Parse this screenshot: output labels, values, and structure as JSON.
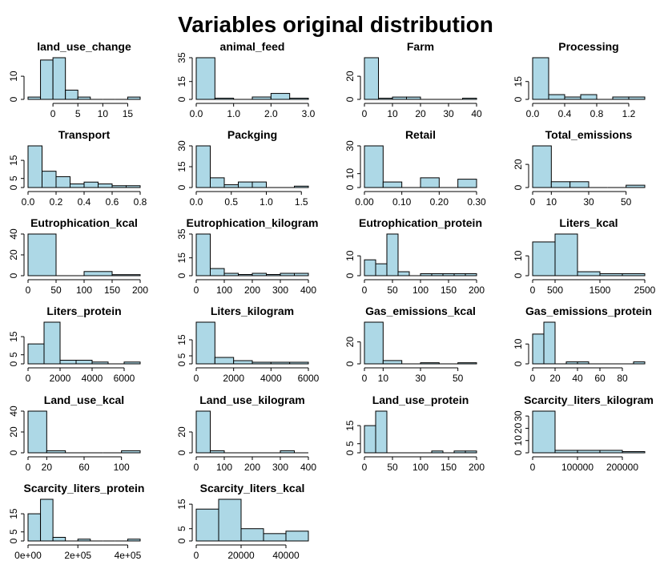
{
  "title": "Variables original distribution",
  "colors": {
    "bar_fill": "#add8e6",
    "bar_stroke": "#000000",
    "axis": "#000000"
  },
  "chart_data": [
    {
      "type": "bar",
      "title": "land_use_change",
      "bins": [
        -5,
        -2.5,
        0,
        2.5,
        5,
        7.5,
        10,
        12.5,
        15,
        17.5
      ],
      "counts": [
        1,
        17,
        18,
        4,
        1,
        0,
        0,
        0,
        1,
        1
      ],
      "xticks": [
        0,
        5,
        10,
        15
      ],
      "yticks": [
        0,
        10
      ],
      "ylim": [
        0,
        18
      ]
    },
    {
      "type": "bar",
      "title": "animal_feed",
      "bins": [
        0,
        0.5,
        1,
        1.5,
        2,
        2.5,
        3
      ],
      "counts": [
        35,
        1,
        0,
        2,
        5,
        1
      ],
      "xticks": [
        0,
        1,
        2,
        3
      ],
      "xtick_labels": [
        "0.0",
        "1.0",
        "2.0",
        "3.0"
      ],
      "yticks": [
        0,
        15,
        35
      ],
      "ylim": [
        0,
        35
      ]
    },
    {
      "type": "bar",
      "title": "Farm",
      "bins": [
        0,
        5,
        10,
        15,
        20,
        25,
        30,
        35,
        40
      ],
      "counts": [
        36,
        1,
        2,
        2,
        0,
        0,
        0,
        1
      ],
      "xticks": [
        0,
        10,
        20,
        30,
        40
      ],
      "yticks": [
        0,
        20
      ],
      "ylim": [
        0,
        36
      ]
    },
    {
      "type": "bar",
      "title": "Processing",
      "bins": [
        0,
        0.2,
        0.4,
        0.6,
        0.8,
        1,
        1.2,
        1.4
      ],
      "counts": [
        35,
        4,
        2,
        4,
        0,
        2,
        2
      ],
      "xticks": [
        0,
        0.4,
        0.8,
        1.2
      ],
      "xtick_labels": [
        "0.0",
        "0.4",
        "0.8",
        "1.2"
      ],
      "yticks": [
        0,
        15
      ],
      "ylim": [
        0,
        35
      ]
    },
    {
      "type": "bar",
      "title": "Transport",
      "bins": [
        0,
        0.1,
        0.2,
        0.3,
        0.4,
        0.5,
        0.6,
        0.7,
        0.8
      ],
      "counts": [
        23,
        9,
        6,
        2,
        3,
        2,
        1,
        1
      ],
      "xticks": [
        0,
        0.2,
        0.4,
        0.6,
        0.8
      ],
      "xtick_labels": [
        "0.0",
        "0.2",
        "0.4",
        "0.6",
        "0.8"
      ],
      "yticks": [
        0,
        5,
        15
      ],
      "ylim": [
        0,
        23
      ]
    },
    {
      "type": "bar",
      "title": "Packging",
      "bins": [
        0,
        0.2,
        0.4,
        0.6,
        0.8,
        1,
        1.2,
        1.4,
        1.6
      ],
      "counts": [
        30,
        7,
        2,
        4,
        4,
        0,
        0,
        1
      ],
      "xticks": [
        0,
        0.5,
        1,
        1.5
      ],
      "xtick_labels": [
        "0.0",
        "0.5",
        "1.0",
        "1.5"
      ],
      "yticks": [
        0,
        15,
        30
      ],
      "ylim": [
        0,
        30
      ]
    },
    {
      "type": "bar",
      "title": "Retail",
      "bins": [
        0,
        0.05,
        0.1,
        0.15,
        0.2,
        0.25,
        0.3
      ],
      "counts": [
        30,
        4,
        0,
        7,
        0,
        6
      ],
      "xticks": [
        0,
        0.1,
        0.2,
        0.3
      ],
      "xtick_labels": [
        "0.00",
        "0.10",
        "0.20",
        "0.30"
      ],
      "yticks": [
        0,
        10,
        30
      ],
      "ylim": [
        0,
        30
      ]
    },
    {
      "type": "bar",
      "title": "Total_emissions",
      "bins": [
        0,
        10,
        20,
        30,
        40,
        50,
        60
      ],
      "counts": [
        36,
        5,
        5,
        0,
        0,
        2
      ],
      "xticks": [
        0,
        10,
        30,
        50
      ],
      "yticks": [
        0,
        20
      ],
      "ylim": [
        0,
        36
      ]
    },
    {
      "type": "bar",
      "title": "Eutrophication_kcal",
      "bins": [
        0,
        50,
        100,
        150,
        200
      ],
      "counts": [
        40,
        0,
        4,
        1
      ],
      "xticks": [
        0,
        50,
        100,
        150,
        200
      ],
      "yticks": [
        0,
        20,
        40
      ],
      "ylim": [
        0,
        40
      ]
    },
    {
      "type": "bar",
      "title": "Eutrophication_kilogram",
      "bins": [
        0,
        50,
        100,
        150,
        200,
        250,
        300,
        350,
        400
      ],
      "counts": [
        35,
        6,
        2,
        1,
        2,
        1,
        2,
        2
      ],
      "xticks": [
        0,
        100,
        200,
        300,
        400
      ],
      "yticks": [
        0,
        15,
        35
      ],
      "ylim": [
        0,
        35
      ]
    },
    {
      "type": "bar",
      "title": "Eutrophication_protein",
      "bins": [
        0,
        20,
        40,
        60,
        80,
        100,
        120,
        140,
        160,
        180,
        200
      ],
      "counts": [
        8,
        6,
        21,
        2,
        0,
        1,
        1,
        1,
        1,
        1
      ],
      "xticks": [
        0,
        50,
        100,
        150,
        200
      ],
      "yticks": [
        0,
        10
      ],
      "ylim": [
        0,
        21
      ]
    },
    {
      "type": "bar",
      "title": "Liters_kcal",
      "bins": [
        0,
        500,
        1000,
        1500,
        2000,
        2500
      ],
      "counts": [
        17,
        21,
        2,
        1,
        1
      ],
      "xticks": [
        0,
        500,
        1500,
        2500
      ],
      "yticks": [
        0,
        10
      ],
      "ylim": [
        0,
        21
      ]
    },
    {
      "type": "bar",
      "title": "Liters_protein",
      "bins": [
        0,
        1000,
        2000,
        3000,
        4000,
        5000,
        6000,
        7000
      ],
      "counts": [
        11,
        23,
        2,
        2,
        1,
        0,
        1
      ],
      "xticks": [
        0,
        2000,
        4000,
        6000
      ],
      "yticks": [
        0,
        5,
        15
      ],
      "ylim": [
        0,
        23
      ]
    },
    {
      "type": "bar",
      "title": "Liters_kilogram",
      "bins": [
        0,
        1000,
        2000,
        3000,
        4000,
        5000,
        6000
      ],
      "counts": [
        26,
        4,
        2,
        1,
        1,
        1
      ],
      "xticks": [
        0,
        2000,
        4000,
        6000
      ],
      "yticks": [
        0,
        5,
        15
      ],
      "ylim": [
        0,
        26
      ]
    },
    {
      "type": "bar",
      "title": "Gas_emissions_kcal",
      "bins": [
        0,
        10,
        20,
        30,
        40,
        50,
        60
      ],
      "counts": [
        38,
        3,
        0,
        1,
        0,
        1
      ],
      "xticks": [
        0,
        10,
        30,
        50
      ],
      "yticks": [
        0,
        20
      ],
      "ylim": [
        0,
        38
      ]
    },
    {
      "type": "bar",
      "title": "Gas_emissions_protein",
      "bins": [
        0,
        10,
        20,
        30,
        40,
        50,
        60,
        70,
        80,
        90,
        100
      ],
      "counts": [
        15,
        21,
        0,
        1,
        1,
        0,
        0,
        0,
        0,
        1
      ],
      "xticks": [
        0,
        20,
        40,
        60,
        80
      ],
      "yticks": [
        0,
        10
      ],
      "ylim": [
        0,
        21
      ]
    },
    {
      "type": "bar",
      "title": "Land_use_kcal",
      "bins": [
        0,
        20,
        40,
        60,
        80,
        100,
        120
      ],
      "counts": [
        40,
        2,
        0,
        0,
        0,
        2
      ],
      "xticks": [
        0,
        20,
        60,
        100
      ],
      "yticks": [
        0,
        20,
        40
      ],
      "ylim": [
        0,
        40
      ]
    },
    {
      "type": "bar",
      "title": "Land_use_kilogram",
      "bins": [
        0,
        50,
        100,
        150,
        200,
        250,
        300,
        350,
        400
      ],
      "counts": [
        40,
        2,
        0,
        0,
        0,
        0,
        2,
        0
      ],
      "xticks": [
        0,
        100,
        200,
        300,
        400
      ],
      "yticks": [
        0,
        20
      ],
      "ylim": [
        0,
        40
      ]
    },
    {
      "type": "bar",
      "title": "Land_use_protein",
      "bins": [
        0,
        20,
        40,
        60,
        80,
        100,
        120,
        140,
        160,
        180,
        200
      ],
      "counts": [
        15,
        23,
        0,
        0,
        0,
        0,
        1,
        0,
        1,
        1
      ],
      "xticks": [
        0,
        50,
        100,
        150,
        200
      ],
      "yticks": [
        0,
        5,
        15
      ],
      "ylim": [
        0,
        23
      ]
    },
    {
      "type": "bar",
      "title": "Scarcity_liters_kilogram",
      "bins": [
        0,
        50000,
        100000,
        150000,
        200000,
        250000
      ],
      "counts": [
        34,
        2,
        2,
        2,
        1
      ],
      "xticks": [
        0,
        100000,
        200000
      ],
      "yticks": [
        0,
        10,
        20,
        30
      ],
      "ylim": [
        0,
        34
      ]
    },
    {
      "type": "bar",
      "title": "Scarcity_liters_protein",
      "bins": [
        0,
        50000,
        100000,
        150000,
        200000,
        250000,
        300000,
        350000,
        400000,
        450000
      ],
      "counts": [
        15,
        23,
        2,
        0,
        1,
        0,
        0,
        0,
        1
      ],
      "xticks": [
        0,
        200000,
        400000
      ],
      "xtick_labels": [
        "0e+00",
        "2e+05",
        "4e+05"
      ],
      "yticks": [
        0,
        5,
        15
      ],
      "ylim": [
        0,
        23
      ]
    },
    {
      "type": "bar",
      "title": "Scarcity_liters_kcal",
      "bins": [
        0,
        10000,
        20000,
        30000,
        40000,
        50000
      ],
      "counts": [
        13,
        17,
        5,
        3,
        4
      ],
      "xticks": [
        0,
        20000,
        40000
      ],
      "yticks": [
        0,
        5,
        15
      ],
      "ylim": [
        0,
        17
      ]
    }
  ]
}
